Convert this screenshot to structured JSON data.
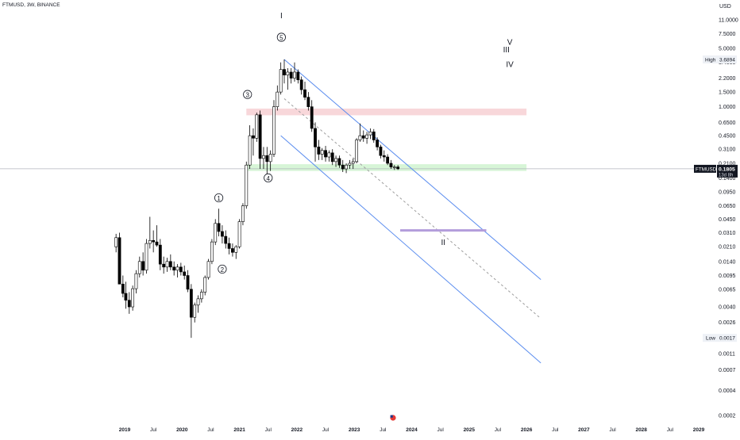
{
  "header": {
    "symbol_line": "FTMUSD, 3W, BINANCE",
    "currency": "USD"
  },
  "price_axis": {
    "ticks": [
      "11.0000",
      "7.5000",
      "5.0000",
      "3.4000",
      "2.2000",
      "1.5000",
      "1.0000",
      "0.6500",
      "0.4500",
      "0.3100",
      "0.2100",
      "0.1400",
      "0.0950",
      "0.0650",
      "0.0450",
      "0.0310",
      "0.0210",
      "0.0140",
      "0.0095",
      "0.0065",
      "0.0040",
      "0.0026",
      "0.0017",
      "0.0011",
      "0.0007",
      "0.0004",
      "0.0002"
    ],
    "high_label": "High",
    "high_value": "3.6894",
    "low_label": "Low",
    "low_value": "0.0017",
    "current_symbol": "FTMUSD",
    "current_price": "0.1805",
    "countdown": "13d 8h"
  },
  "time_axis": {
    "labels": [
      "2019",
      "Jul",
      "2020",
      "Jul",
      "2021",
      "Jul",
      "2022",
      "Jul",
      "2023",
      "Jul",
      "2024",
      "Jul",
      "2025",
      "Jul",
      "2026",
      "Jul",
      "2027",
      "Jul",
      "2028",
      "Jul",
      "2029"
    ]
  },
  "annotations": {
    "wave_i": "I",
    "wave_5": "5",
    "wave_3": "3",
    "wave_1": "1",
    "wave_2": "2",
    "wave_4": "4",
    "wave_ii": "II",
    "wave_iii": "III",
    "wave_iv": "IV",
    "wave_v": "V"
  },
  "colors": {
    "bull": "#ffffff",
    "bear": "#000000",
    "channel": "#5b8def",
    "midline": "#9e9e9e",
    "resistance_zone": "#f8d7da",
    "support_zone": "#d7f5d7",
    "target_line": "#b39ddb",
    "price_line": "#b2b5be"
  },
  "chart_data": {
    "type": "candlestick",
    "scale": "log",
    "interval": "3W",
    "x_range": [
      2018.45,
      2029.3
    ],
    "y_range": [
      0.0002,
      14
    ],
    "candles": [
      {
        "t": 2018.85,
        "o": 0.021,
        "h": 0.03,
        "l": 0.018,
        "c": 0.027
      },
      {
        "t": 2018.91,
        "o": 0.027,
        "h": 0.031,
        "l": 0.013,
        "c": 0.0075
      },
      {
        "t": 2018.97,
        "o": 0.0075,
        "h": 0.0095,
        "l": 0.0052,
        "c": 0.0058
      },
      {
        "t": 2019.02,
        "o": 0.0058,
        "h": 0.008,
        "l": 0.0038,
        "c": 0.0048
      },
      {
        "t": 2019.08,
        "o": 0.0048,
        "h": 0.006,
        "l": 0.0033,
        "c": 0.004
      },
      {
        "t": 2019.14,
        "o": 0.004,
        "h": 0.0072,
        "l": 0.0036,
        "c": 0.0066
      },
      {
        "t": 2019.2,
        "o": 0.0066,
        "h": 0.011,
        "l": 0.0058,
        "c": 0.01
      },
      {
        "t": 2019.26,
        "o": 0.01,
        "h": 0.016,
        "l": 0.009,
        "c": 0.014
      },
      {
        "t": 2019.32,
        "o": 0.014,
        "h": 0.018,
        "l": 0.0095,
        "c": 0.011
      },
      {
        "t": 2019.38,
        "o": 0.011,
        "h": 0.026,
        "l": 0.01,
        "c": 0.023
      },
      {
        "t": 2019.44,
        "o": 0.023,
        "h": 0.048,
        "l": 0.02,
        "c": 0.025
      },
      {
        "t": 2019.5,
        "o": 0.025,
        "h": 0.033,
        "l": 0.018,
        "c": 0.024
      },
      {
        "t": 2019.56,
        "o": 0.024,
        "h": 0.038,
        "l": 0.021,
        "c": 0.022
      },
      {
        "t": 2019.62,
        "o": 0.022,
        "h": 0.026,
        "l": 0.011,
        "c": 0.013
      },
      {
        "t": 2019.68,
        "o": 0.013,
        "h": 0.016,
        "l": 0.01,
        "c": 0.012
      },
      {
        "t": 2019.74,
        "o": 0.012,
        "h": 0.0155,
        "l": 0.0105,
        "c": 0.014
      },
      {
        "t": 2019.8,
        "o": 0.014,
        "h": 0.017,
        "l": 0.011,
        "c": 0.012
      },
      {
        "t": 2019.86,
        "o": 0.012,
        "h": 0.014,
        "l": 0.0095,
        "c": 0.011
      },
      {
        "t": 2019.92,
        "o": 0.011,
        "h": 0.013,
        "l": 0.009,
        "c": 0.012
      },
      {
        "t": 2019.98,
        "o": 0.012,
        "h": 0.0135,
        "l": 0.0095,
        "c": 0.0105
      },
      {
        "t": 2020.04,
        "o": 0.0105,
        "h": 0.0125,
        "l": 0.0085,
        "c": 0.0095
      },
      {
        "t": 2020.1,
        "o": 0.0095,
        "h": 0.011,
        "l": 0.006,
        "c": 0.0065
      },
      {
        "t": 2020.16,
        "o": 0.0065,
        "h": 0.0075,
        "l": 0.0017,
        "c": 0.003
      },
      {
        "t": 2020.22,
        "o": 0.003,
        "h": 0.0045,
        "l": 0.0026,
        "c": 0.0042
      },
      {
        "t": 2020.28,
        "o": 0.0042,
        "h": 0.0055,
        "l": 0.0034,
        "c": 0.005
      },
      {
        "t": 2020.34,
        "o": 0.005,
        "h": 0.0065,
        "l": 0.0045,
        "c": 0.006
      },
      {
        "t": 2020.4,
        "o": 0.006,
        "h": 0.0095,
        "l": 0.0055,
        "c": 0.009
      },
      {
        "t": 2020.46,
        "o": 0.009,
        "h": 0.015,
        "l": 0.0085,
        "c": 0.014
      },
      {
        "t": 2020.52,
        "o": 0.014,
        "h": 0.026,
        "l": 0.013,
        "c": 0.024
      },
      {
        "t": 2020.58,
        "o": 0.024,
        "h": 0.045,
        "l": 0.022,
        "c": 0.04
      },
      {
        "t": 2020.64,
        "o": 0.04,
        "h": 0.06,
        "l": 0.028,
        "c": 0.032
      },
      {
        "t": 2020.7,
        "o": 0.032,
        "h": 0.038,
        "l": 0.023,
        "c": 0.028
      },
      {
        "t": 2020.76,
        "o": 0.028,
        "h": 0.033,
        "l": 0.02,
        "c": 0.023
      },
      {
        "t": 2020.82,
        "o": 0.023,
        "h": 0.027,
        "l": 0.017,
        "c": 0.02
      },
      {
        "t": 2020.88,
        "o": 0.02,
        "h": 0.023,
        "l": 0.016,
        "c": 0.018
      },
      {
        "t": 2020.94,
        "o": 0.018,
        "h": 0.022,
        "l": 0.015,
        "c": 0.021
      },
      {
        "t": 2021.0,
        "o": 0.021,
        "h": 0.045,
        "l": 0.02,
        "c": 0.042
      },
      {
        "t": 2021.06,
        "o": 0.042,
        "h": 0.07,
        "l": 0.038,
        "c": 0.065
      },
      {
        "t": 2021.12,
        "o": 0.065,
        "h": 0.22,
        "l": 0.06,
        "c": 0.2
      },
      {
        "t": 2021.18,
        "o": 0.2,
        "h": 0.6,
        "l": 0.18,
        "c": 0.45
      },
      {
        "t": 2021.24,
        "o": 0.45,
        "h": 0.55,
        "l": 0.26,
        "c": 0.42
      },
      {
        "t": 2021.3,
        "o": 0.42,
        "h": 0.85,
        "l": 0.38,
        "c": 0.8
      },
      {
        "t": 2021.36,
        "o": 0.8,
        "h": 0.9,
        "l": 0.18,
        "c": 0.24
      },
      {
        "t": 2021.42,
        "o": 0.24,
        "h": 0.33,
        "l": 0.18,
        "c": 0.26
      },
      {
        "t": 2021.48,
        "o": 0.26,
        "h": 0.33,
        "l": 0.15,
        "c": 0.22
      },
      {
        "t": 2021.54,
        "o": 0.22,
        "h": 0.3,
        "l": 0.17,
        "c": 0.27
      },
      {
        "t": 2021.6,
        "o": 0.27,
        "h": 1.2,
        "l": 0.25,
        "c": 1.0
      },
      {
        "t": 2021.66,
        "o": 1.0,
        "h": 1.8,
        "l": 0.9,
        "c": 1.5
      },
      {
        "t": 2021.72,
        "o": 1.5,
        "h": 3.4,
        "l": 1.4,
        "c": 2.8
      },
      {
        "t": 2021.78,
        "o": 2.8,
        "h": 3.6894,
        "l": 1.9,
        "c": 2.4
      },
      {
        "t": 2021.84,
        "o": 2.4,
        "h": 2.9,
        "l": 1.6,
        "c": 2.6
      },
      {
        "t": 2021.9,
        "o": 2.6,
        "h": 2.9,
        "l": 1.9,
        "c": 2.2
      },
      {
        "t": 2021.96,
        "o": 2.2,
        "h": 3.4,
        "l": 2.0,
        "c": 2.6
      },
      {
        "t": 2022.02,
        "o": 2.6,
        "h": 2.8,
        "l": 1.9,
        "c": 2.1
      },
      {
        "t": 2022.08,
        "o": 2.1,
        "h": 2.3,
        "l": 1.4,
        "c": 1.6
      },
      {
        "t": 2022.14,
        "o": 1.6,
        "h": 2.0,
        "l": 1.2,
        "c": 1.3
      },
      {
        "t": 2022.2,
        "o": 1.3,
        "h": 1.5,
        "l": 0.9,
        "c": 1.0
      },
      {
        "t": 2022.26,
        "o": 1.0,
        "h": 1.2,
        "l": 0.5,
        "c": 0.55
      },
      {
        "t": 2022.32,
        "o": 0.55,
        "h": 0.65,
        "l": 0.22,
        "c": 0.33
      },
      {
        "t": 2022.38,
        "o": 0.33,
        "h": 0.4,
        "l": 0.23,
        "c": 0.27
      },
      {
        "t": 2022.44,
        "o": 0.27,
        "h": 0.32,
        "l": 0.23,
        "c": 0.3
      },
      {
        "t": 2022.5,
        "o": 0.3,
        "h": 0.34,
        "l": 0.22,
        "c": 0.25
      },
      {
        "t": 2022.56,
        "o": 0.25,
        "h": 0.3,
        "l": 0.22,
        "c": 0.28
      },
      {
        "t": 2022.62,
        "o": 0.28,
        "h": 0.31,
        "l": 0.2,
        "c": 0.22
      },
      {
        "t": 2022.68,
        "o": 0.22,
        "h": 0.26,
        "l": 0.19,
        "c": 0.24
      },
      {
        "t": 2022.74,
        "o": 0.24,
        "h": 0.26,
        "l": 0.185,
        "c": 0.2
      },
      {
        "t": 2022.8,
        "o": 0.2,
        "h": 0.23,
        "l": 0.165,
        "c": 0.18
      },
      {
        "t": 2022.86,
        "o": 0.18,
        "h": 0.21,
        "l": 0.16,
        "c": 0.2
      },
      {
        "t": 2022.92,
        "o": 0.2,
        "h": 0.23,
        "l": 0.18,
        "c": 0.21
      },
      {
        "t": 2022.98,
        "o": 0.21,
        "h": 0.24,
        "l": 0.18,
        "c": 0.22
      },
      {
        "t": 2023.04,
        "o": 0.22,
        "h": 0.42,
        "l": 0.21,
        "c": 0.4
      },
      {
        "t": 2023.1,
        "o": 0.4,
        "h": 0.63,
        "l": 0.38,
        "c": 0.45
      },
      {
        "t": 2023.16,
        "o": 0.45,
        "h": 0.52,
        "l": 0.38,
        "c": 0.42
      },
      {
        "t": 2023.22,
        "o": 0.42,
        "h": 0.5,
        "l": 0.36,
        "c": 0.46
      },
      {
        "t": 2023.28,
        "o": 0.46,
        "h": 0.55,
        "l": 0.41,
        "c": 0.5
      },
      {
        "t": 2023.34,
        "o": 0.5,
        "h": 0.54,
        "l": 0.37,
        "c": 0.4
      },
      {
        "t": 2023.4,
        "o": 0.4,
        "h": 0.43,
        "l": 0.3,
        "c": 0.33
      },
      {
        "t": 2023.46,
        "o": 0.33,
        "h": 0.35,
        "l": 0.24,
        "c": 0.26
      },
      {
        "t": 2023.52,
        "o": 0.26,
        "h": 0.3,
        "l": 0.22,
        "c": 0.25
      },
      {
        "t": 2023.58,
        "o": 0.25,
        "h": 0.27,
        "l": 0.2,
        "c": 0.21
      },
      {
        "t": 2023.64,
        "o": 0.21,
        "h": 0.23,
        "l": 0.18,
        "c": 0.19
      },
      {
        "t": 2023.7,
        "o": 0.19,
        "h": 0.2,
        "l": 0.175,
        "c": 0.19
      },
      {
        "t": 2023.76,
        "o": 0.19,
        "h": 0.2,
        "l": 0.175,
        "c": 0.1805
      }
    ],
    "channel": {
      "upper": [
        [
          2021.78,
          3.69
        ],
        [
          2026.25,
          0.0085
        ]
      ],
      "lower": [
        [
          2021.72,
          0.45
        ],
        [
          2026.25,
          0.00085
        ]
      ],
      "mid": [
        [
          2021.78,
          1.25
        ],
        [
          2026.25,
          0.0029
        ]
      ]
    },
    "zones": [
      {
        "kind": "resistance",
        "x": [
          2021.12,
          2026.0
        ],
        "y": [
          0.79,
          0.95
        ]
      },
      {
        "kind": "support",
        "x": [
          2021.12,
          2026.0
        ],
        "y": [
          0.17,
          0.205
        ]
      }
    ],
    "target_line": {
      "x": [
        2023.8,
        2025.3
      ],
      "y": 0.033
    },
    "wave_points": [
      {
        "label": "I",
        "t": 2021.73,
        "p": 11.5
      },
      {
        "label": "5",
        "t": 2021.73,
        "p": 6.3
      },
      {
        "label": "3",
        "t": 2021.14,
        "p": 1.3
      },
      {
        "label": "1",
        "t": 2020.64,
        "p": 0.075
      },
      {
        "label": "2",
        "t": 2020.7,
        "p": 0.0105
      },
      {
        "label": "4",
        "t": 2021.5,
        "p": 0.13
      },
      {
        "label": "II",
        "t": 2024.55,
        "p": 0.022
      },
      {
        "label": "III",
        "t": 2025.65,
        "p": 4.5
      },
      {
        "label": "V",
        "t": 2025.71,
        "p": 5.5
      },
      {
        "label": "IV",
        "t": 2025.71,
        "p": 3.0
      }
    ]
  }
}
